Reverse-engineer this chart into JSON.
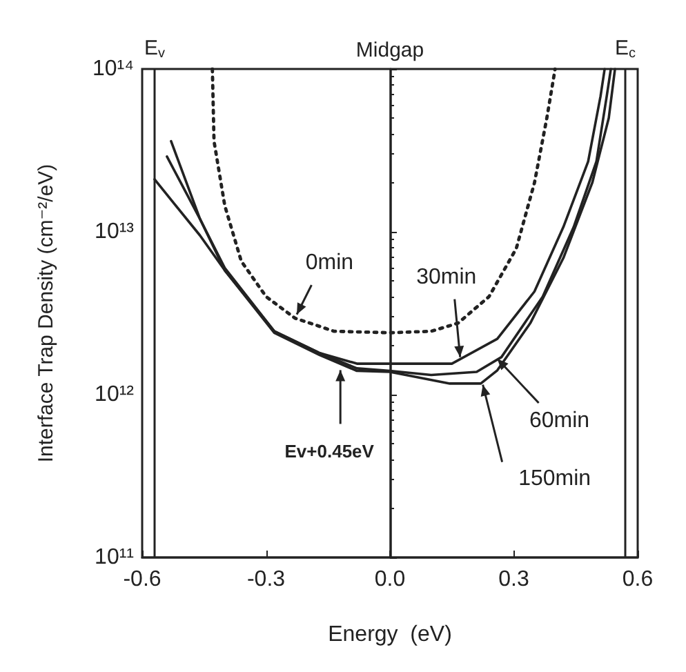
{
  "chart_data": {
    "type": "line",
    "xlabel": "Energy  (eV)",
    "ylabel": "Interface Trap Density (cm⁻²/eV)",
    "xlim": [
      -0.6,
      0.6
    ],
    "ylim": [
      100000000000.0,
      100000000000000.0
    ],
    "log": "y",
    "grid": false,
    "marker": "none",
    "xticks": [
      {
        "value": -0.6,
        "label": "-0.6"
      },
      {
        "value": -0.3,
        "label": "-0.3"
      },
      {
        "value": 0,
        "label": "0.0"
      },
      {
        "value": 0.3,
        "label": "0.3"
      },
      {
        "value": 0.6,
        "label": "0.6"
      }
    ],
    "yticks": [
      {
        "value": 100000000000.0,
        "label": "10¹¹"
      },
      {
        "value": 1000000000000.0,
        "label": "10¹²"
      },
      {
        "value": 10000000000000.0,
        "label": "10¹³"
      },
      {
        "value": 100000000000000.0,
        "label": "10¹⁴"
      }
    ],
    "series": [
      {
        "color": "#222222",
        "line_style": "dotted",
        "x": [
          -0.43,
          -0.426,
          -0.4,
          -0.36,
          -0.3,
          -0.23,
          -0.135,
          0,
          0.1,
          0.165,
          0.24,
          0.306,
          0.35,
          0.38,
          0.4
        ],
        "values": [
          100000000000000.0,
          36000000000000.0,
          14500000000000.0,
          6600000000000.0,
          4000000000000.0,
          2950000000000.0,
          2450000000000.0,
          2400000000000.0,
          2450000000000.0,
          2750000000000.0,
          4000000000000.0,
          7900000000000.0,
          20000000000000.0,
          50000000000000.0,
          100000000000000.0
        ]
      },
      {
        "color": "#222222",
        "line_style": "solid",
        "x": [
          -0.54,
          -0.46,
          -0.4,
          -0.28,
          -0.17,
          -0.08,
          0,
          0.15,
          0.26,
          0.35,
          0.42,
          0.48,
          0.51,
          0.52
        ],
        "values": [
          29000000000000.0,
          12000000000000.0,
          6000000000000.0,
          2450000000000.0,
          1800000000000.0,
          1550000000000.0,
          1550000000000.0,
          1550000000000.0,
          2200000000000.0,
          4300000000000.0,
          10700000000000.0,
          27000000000000.0,
          68000000000000.0,
          100000000000000.0
        ]
      },
      {
        "color": "#222222",
        "line_style": "solid",
        "x": [
          -0.53,
          -0.46,
          -0.4,
          -0.28,
          -0.17,
          -0.08,
          0,
          0.1,
          0.21,
          0.27,
          0.37,
          0.445,
          0.5,
          0.525,
          0.535
        ],
        "values": [
          36000000000000.0,
          12000000000000.0,
          5800000000000.0,
          2450000000000.0,
          1800000000000.0,
          1450000000000.0,
          1400000000000.0,
          1320000000000.0,
          1380000000000.0,
          1700000000000.0,
          4000000000000.0,
          10700000000000.0,
          27000000000000.0,
          68000000000000.0,
          100000000000000.0
        ]
      },
      {
        "color": "#222222",
        "line_style": "solid",
        "x": [
          -0.57,
          -0.46,
          -0.4,
          -0.28,
          -0.17,
          -0.08,
          0,
          0.06,
          0.145,
          0.22,
          0.26,
          0.34,
          0.42,
          0.49,
          0.53,
          0.545
        ],
        "values": [
          21000000000000.0,
          9500000000000.0,
          5800000000000.0,
          2400000000000.0,
          1750000000000.0,
          1400000000000.0,
          1380000000000.0,
          1290000000000.0,
          1170000000000.0,
          1170000000000.0,
          1410000000000.0,
          2750000000000.0,
          6900000000000.0,
          20000000000000.0,
          50000000000000.0,
          100000000000000.0
        ]
      }
    ],
    "ref_lines": [
      {
        "axis": "x",
        "value": -0.57,
        "label": "E$_{v}$",
        "color": "#222222",
        "line_style": "solid"
      },
      {
        "axis": "x",
        "value": 0,
        "label": "Midgap",
        "color": "#222222",
        "line_style": "solid"
      },
      {
        "axis": "x",
        "value": 0.57,
        "label": "E$_{c}$",
        "color": "#222222",
        "line_style": "solid"
      }
    ],
    "annotations": [
      {
        "text": "0min",
        "x": -0.23,
        "y": 2950000000000.0
      },
      {
        "text": "30min",
        "x": 0.17,
        "y": 1700000000000.0
      },
      {
        "text": "60min",
        "x": 0.26,
        "y": 1660000000000.0
      },
      {
        "text": "150min",
        "x": 0.225,
        "y": 1150000000000.0
      },
      {
        "text": "Ev+0.45eV",
        "x": -0.12,
        "y": 1500000000000.0
      }
    ]
  }
}
